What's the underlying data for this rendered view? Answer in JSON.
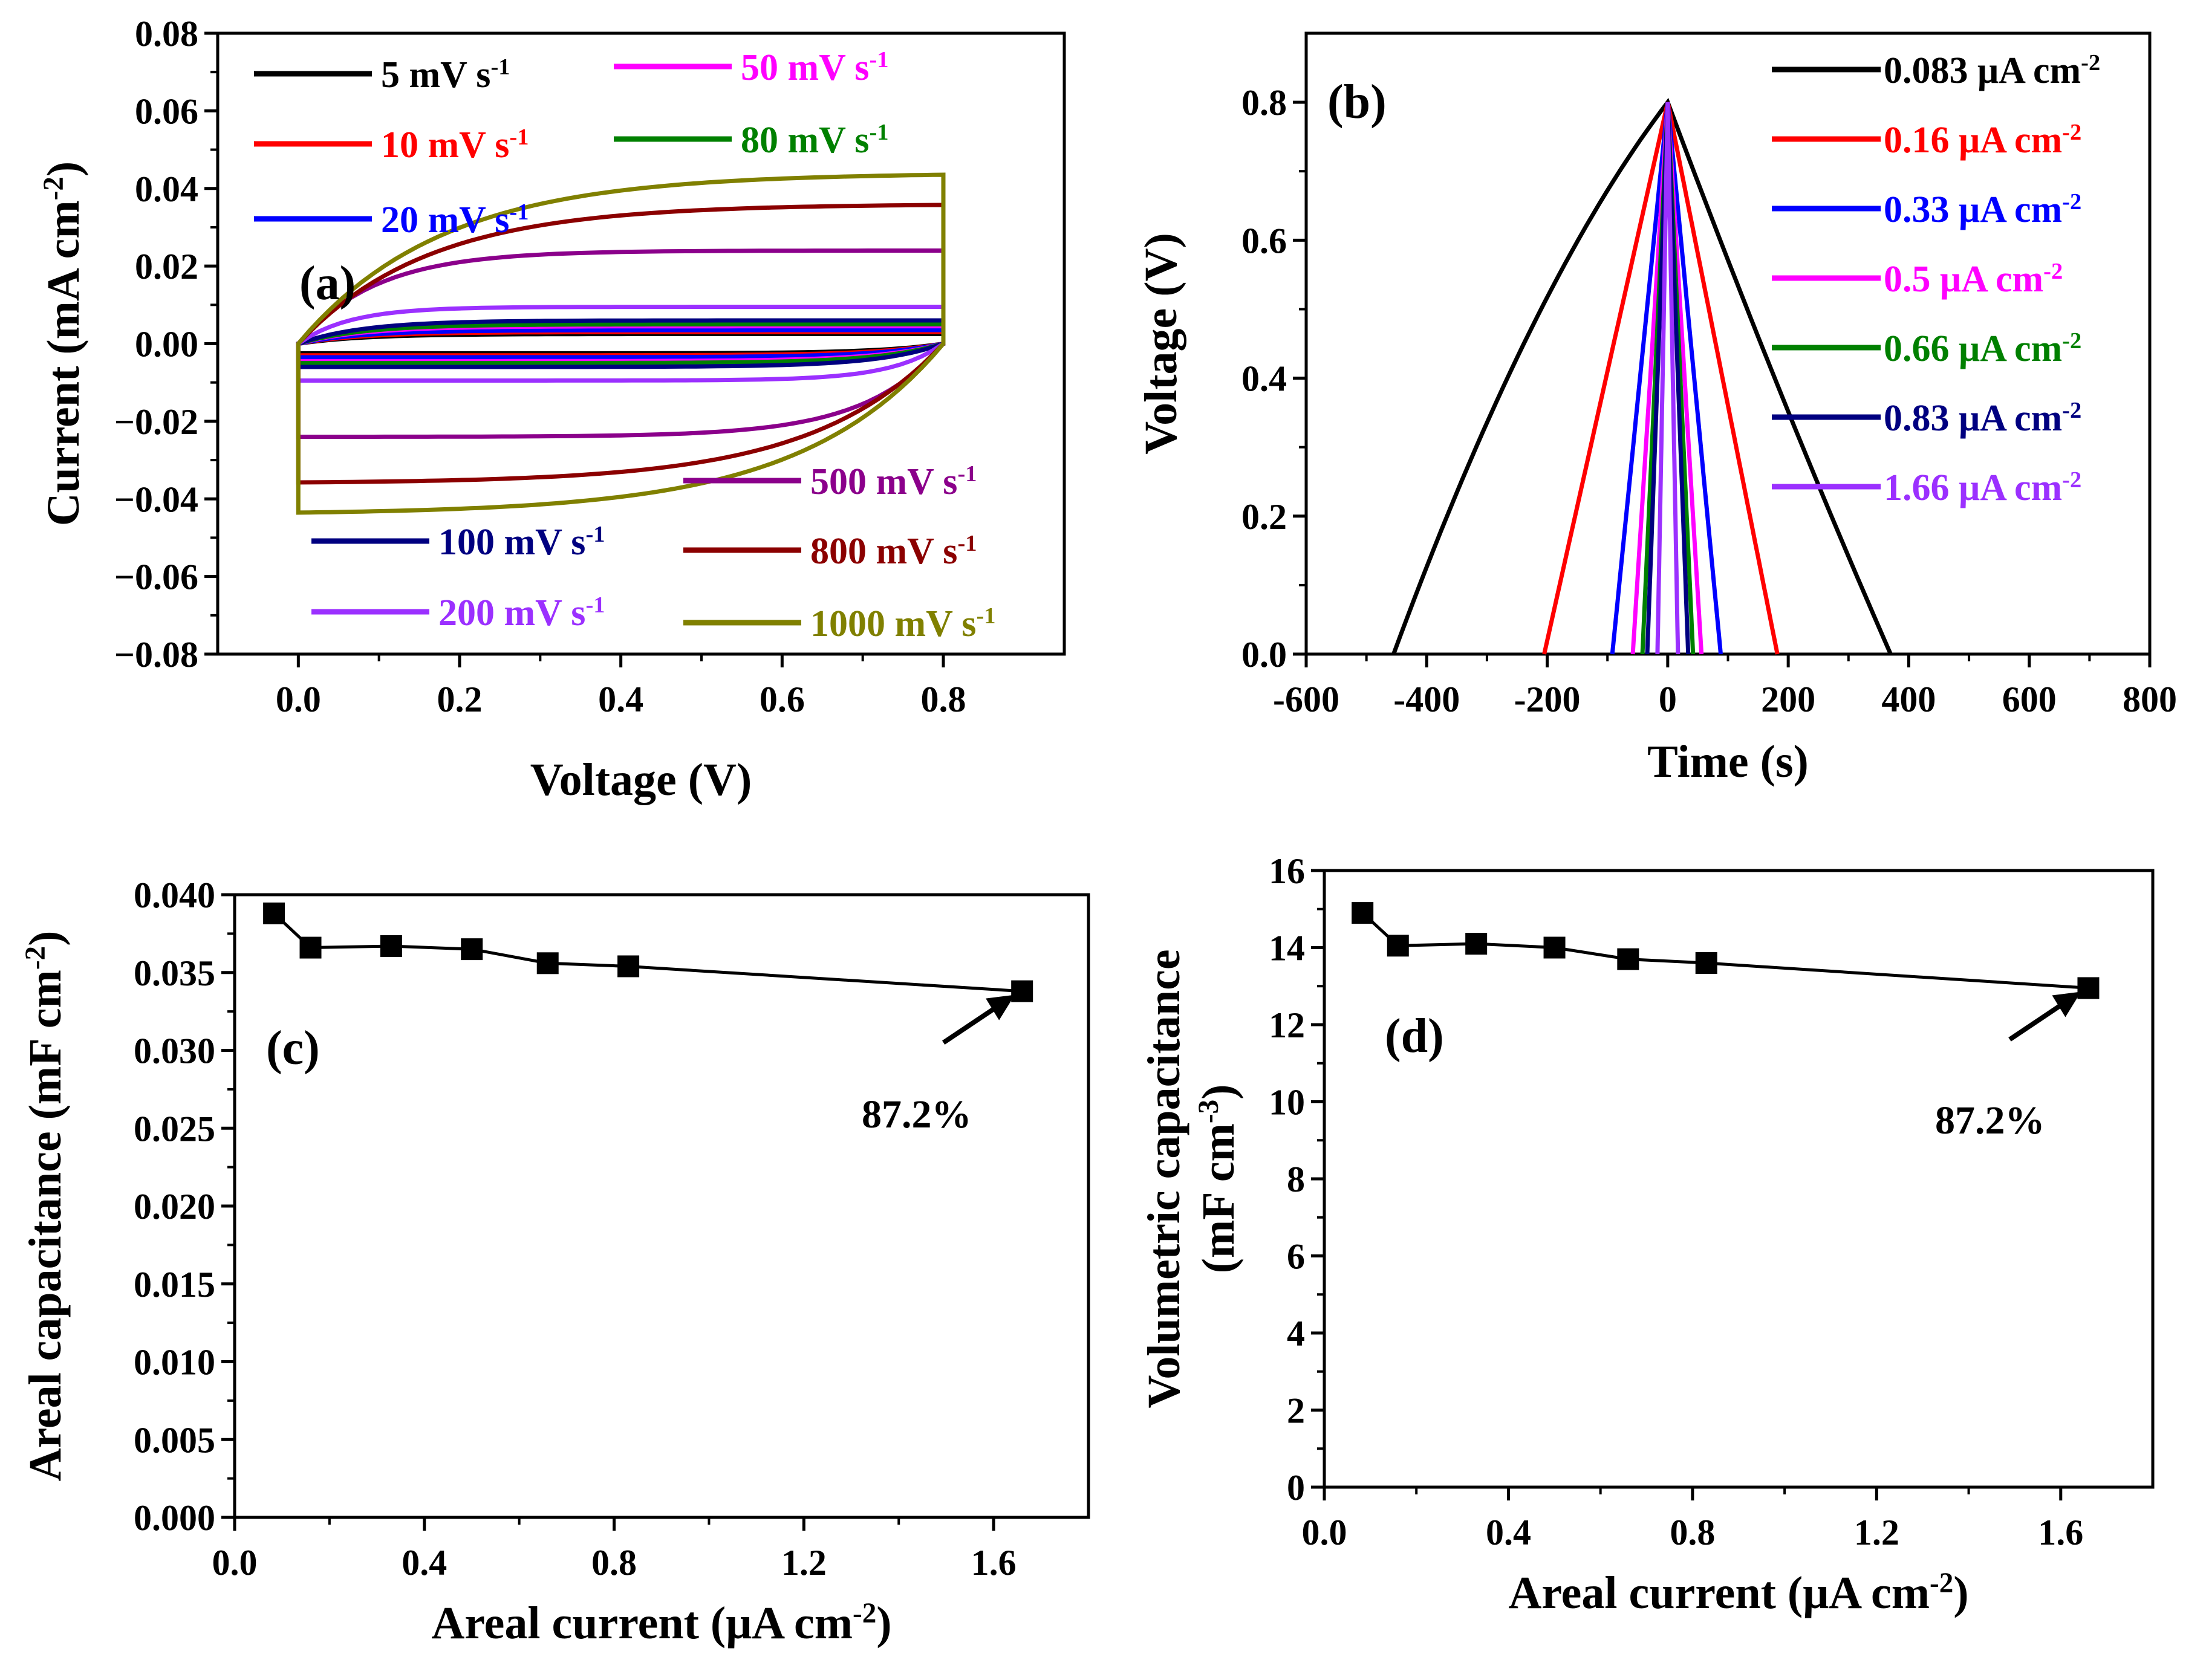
{
  "chart_data": [
    {
      "id": "a",
      "type": "line",
      "panel_label": "(a)",
      "xlabel": "Voltage (V)",
      "ylabel": "Current (mA cm",
      "ylabel_sup": "-2",
      "ylabel_end": ")",
      "xlim": [
        -0.1,
        0.95
      ],
      "ylim": [
        -0.08,
        0.08
      ],
      "xticks": [
        0.0,
        0.2,
        0.4,
        0.6,
        0.8
      ],
      "xtick_labels": [
        "0.0",
        "0.2",
        "0.4",
        "0.6",
        "0.8"
      ],
      "yticks": [
        -0.08,
        -0.06,
        -0.04,
        -0.02,
        0.0,
        0.02,
        0.04,
        0.06,
        0.08
      ],
      "ytick_labels": [
        "−0.08",
        "−0.06",
        "−0.04",
        "−0.02",
        "0.00",
        "0.02",
        "0.04",
        "0.06",
        "0.08"
      ],
      "series": [
        {
          "name": "5 mV s",
          "sup": "-1",
          "color": "#000000",
          "amplitude": 0.0025,
          "shape": 0.1,
          "legend": "top-left"
        },
        {
          "name": "10 mV s",
          "sup": "-1",
          "color": "#ff0000",
          "amplitude": 0.003,
          "shape": 0.1,
          "legend": "top-left"
        },
        {
          "name": "20 mV s",
          "sup": "-1",
          "color": "#0000ff",
          "amplitude": 0.0035,
          "shape": 0.1,
          "legend": "top-left"
        },
        {
          "name": "50 mV s",
          "sup": "-1",
          "color": "#ff00ff",
          "amplitude": 0.0045,
          "shape": 0.1,
          "legend": "top-center"
        },
        {
          "name": "80 mV s",
          "sup": "-1",
          "color": "#008000",
          "amplitude": 0.005,
          "shape": 0.1,
          "legend": "top-center"
        },
        {
          "name": "100 mV s",
          "sup": "-1",
          "color": "#000080",
          "amplitude": 0.006,
          "shape": 0.1,
          "legend": "bottom-left"
        },
        {
          "name": "200 mV s",
          "sup": "-1",
          "color": "#9b30ff",
          "amplitude": 0.0095,
          "shape": 0.08,
          "legend": "bottom-left"
        },
        {
          "name": "500 mV s",
          "sup": "-1",
          "color": "#8b008b",
          "amplitude": 0.024,
          "shape": 0.12,
          "legend": "bottom-right"
        },
        {
          "name": "800 mV s",
          "sup": "-1",
          "color": "#8b0000",
          "amplitude": 0.036,
          "shape": 0.2,
          "legend": "bottom-right"
        },
        {
          "name": "1000 mV s",
          "sup": "-1",
          "color": "#808000",
          "amplitude": 0.044,
          "shape": 0.22,
          "legend": "bottom-right"
        }
      ]
    },
    {
      "id": "b",
      "type": "line",
      "panel_label": "(b)",
      "xlabel": "Time (s)",
      "ylabel": "Voltage (V)",
      "xlim": [
        -600,
        800
      ],
      "ylim": [
        0.0,
        0.9
      ],
      "xticks": [
        -600,
        -400,
        -200,
        0,
        200,
        400,
        600,
        800
      ],
      "xtick_labels": [
        "-600",
        "-400",
        "-200",
        "0",
        "200",
        "400",
        "600",
        "800"
      ],
      "yticks": [
        0.0,
        0.2,
        0.4,
        0.6,
        0.8
      ],
      "ytick_labels": [
        "0.0",
        "0.2",
        "0.4",
        "0.6",
        "0.8"
      ],
      "series": [
        {
          "name": "0.083  μA cm",
          "sup": "-2",
          "color": "#000000",
          "start": -455,
          "end": 370,
          "charge_curve": 0.35,
          "discharge_curve": -0.08
        },
        {
          "name": "0.16  μA cm",
          "sup": "-2",
          "color": "#ff0000",
          "start": -205,
          "end": 182,
          "charge_curve": 0.0,
          "discharge_curve": 0.0
        },
        {
          "name": "0.33  μA cm",
          "sup": "-2",
          "color": "#0000ff",
          "start": -92,
          "end": 88,
          "charge_curve": 0.0,
          "discharge_curve": 0.0
        },
        {
          "name": "0.5  μA cm",
          "sup": "-2",
          "color": "#ff00ff",
          "start": -58,
          "end": 56,
          "charge_curve": 0.0,
          "discharge_curve": 0.0
        },
        {
          "name": "0.66  μA cm",
          "sup": "-2",
          "color": "#008000",
          "start": -42,
          "end": 42,
          "charge_curve": 0.0,
          "discharge_curve": 0.0
        },
        {
          "name": "0.83  μA cm",
          "sup": "-2",
          "color": "#000080",
          "start": -34,
          "end": 34,
          "charge_curve": 0.0,
          "discharge_curve": 0.0
        },
        {
          "name": "1.66 μA cm",
          "sup": "-2",
          "color": "#9b30ff",
          "start": -17,
          "end": 17,
          "charge_curve": 0.0,
          "discharge_curve": 0.0
        }
      ],
      "peak_voltage": 0.8
    },
    {
      "id": "c",
      "type": "line",
      "panel_label": "(c)",
      "xlabel": "Areal current (μA cm",
      "xlabel_sup": "-2",
      "xlabel_end": ")",
      "ylabel": "Areal capacitance (mF cm",
      "ylabel_sup": "-2",
      "ylabel_end": ")",
      "xlim": [
        0.0,
        1.8
      ],
      "ylim": [
        0.0,
        0.04
      ],
      "xticks": [
        0.0,
        0.4,
        0.8,
        1.2,
        1.6
      ],
      "xtick_labels": [
        "0.0",
        "0.4",
        "0.8",
        "1.2",
        "1.6"
      ],
      "yticks": [
        0.0,
        0.005,
        0.01,
        0.015,
        0.02,
        0.025,
        0.03,
        0.035,
        0.04
      ],
      "ytick_labels": [
        "0.000",
        "0.005",
        "0.010",
        "0.015",
        "0.020",
        "0.025",
        "0.030",
        "0.035",
        "0.040"
      ],
      "x": [
        0.083,
        0.16,
        0.33,
        0.5,
        0.66,
        0.83,
        1.66
      ],
      "values": [
        0.0388,
        0.0366,
        0.0367,
        0.0365,
        0.0356,
        0.0354,
        0.0338
      ],
      "annotation": "87.2%"
    },
    {
      "id": "d",
      "type": "line",
      "panel_label": "(d)",
      "xlabel": "Areal current (μA cm",
      "xlabel_sup": "-2",
      "xlabel_end": ")",
      "ylabel": "Volumetric capacitance",
      "ylabel2": "(mF cm",
      "ylabel2_sup": "-3",
      "ylabel2_end": ")",
      "xlim": [
        0.0,
        1.8
      ],
      "ylim": [
        0,
        16
      ],
      "xticks": [
        0.0,
        0.4,
        0.8,
        1.2,
        1.6
      ],
      "xtick_labels": [
        "0.0",
        "0.4",
        "0.8",
        "1.2",
        "1.6"
      ],
      "yticks": [
        0,
        2,
        4,
        6,
        8,
        10,
        12,
        14,
        16
      ],
      "ytick_labels": [
        "0",
        "2",
        "4",
        "6",
        "8",
        "10",
        "12",
        "14",
        "16"
      ],
      "x": [
        0.083,
        0.16,
        0.33,
        0.5,
        0.66,
        0.83,
        1.66
      ],
      "values": [
        14.9,
        14.05,
        14.1,
        14.0,
        13.7,
        13.6,
        12.95
      ],
      "annotation": "87.2%"
    }
  ]
}
